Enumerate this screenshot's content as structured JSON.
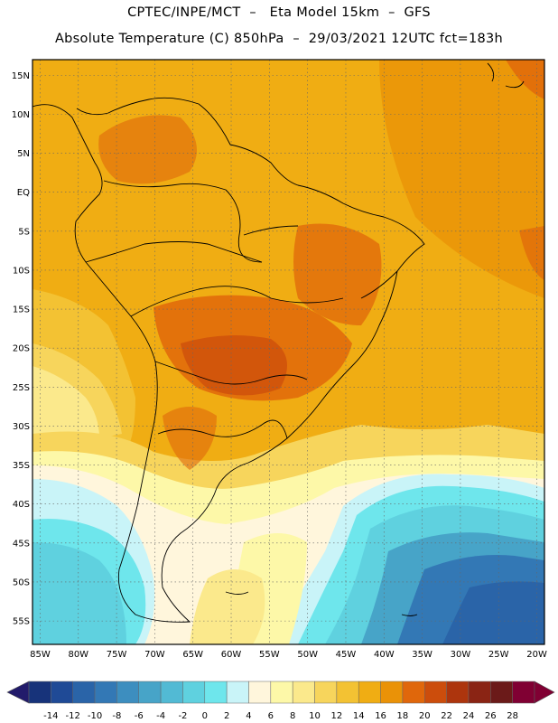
{
  "header": {
    "line1": "CPTEC/INPE/MCT  –   Eta Model 15km  –  GFS",
    "line2": "Absolute Temperature (C) 850hPa  –  29/03/2021 12UTC fct=183h"
  },
  "map": {
    "region": "South America",
    "lon_labels": [
      "85W",
      "80W",
      "75W",
      "70W",
      "65W",
      "60W",
      "55W",
      "50W",
      "45W",
      "40W",
      "35W",
      "30W",
      "25W",
      "20W"
    ],
    "lat_labels": [
      "15N",
      "10N",
      "5N",
      "EQ",
      "5S",
      "10S",
      "15S",
      "20S",
      "25S",
      "30S",
      "35S",
      "40S",
      "45S",
      "50S",
      "55S"
    ],
    "lon_range": [
      -86,
      -19
    ],
    "lat_range": [
      17,
      -58
    ],
    "grid": true
  },
  "colorbar": {
    "labels": [
      "-14",
      "-12",
      "-10",
      "-8",
      "-6",
      "-4",
      "-2",
      "0",
      "2",
      "4",
      "6",
      "8",
      "10",
      "12",
      "14",
      "16",
      "18",
      "20",
      "22",
      "24",
      "26",
      "28"
    ],
    "colors": [
      "#17337a",
      "#1f4a96",
      "#2a64a8",
      "#3378b5",
      "#3d8ebf",
      "#47a4c8",
      "#52bad4",
      "#5fd1df",
      "#6ee6ec",
      "#c9f4f8",
      "#fff6dc",
      "#fdf8a8",
      "#fbe98c",
      "#f7d55c",
      "#f3c233",
      "#f0ad13",
      "#ea9207",
      "#e0670b",
      "#cc4d0c",
      "#ad350d",
      "#8a2414",
      "#6b1a19",
      "#800033"
    ],
    "low_arrow": "#221b6b",
    "high_arrow": "#800033"
  }
}
